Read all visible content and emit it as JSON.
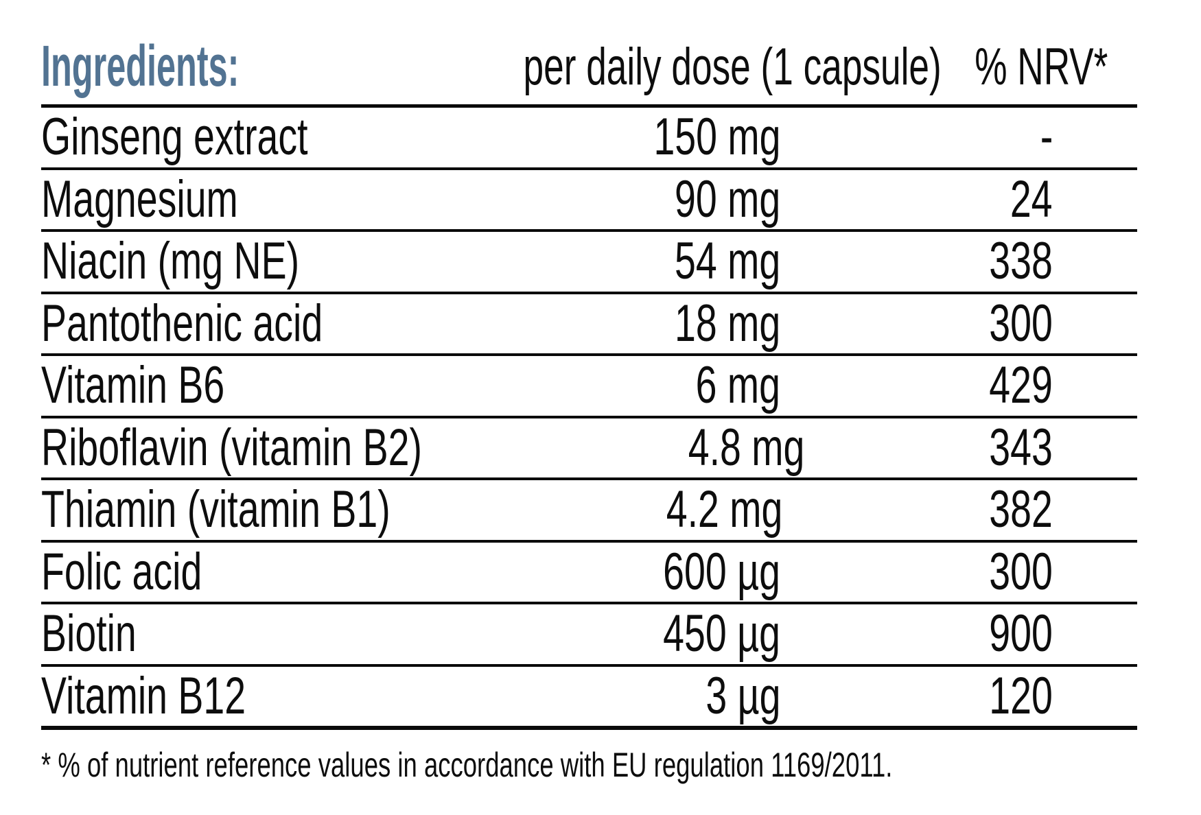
{
  "table": {
    "header": {
      "ingredients": "Ingredients:",
      "dose": "per daily dose (1 capsule)",
      "nrv": "% NRV*"
    },
    "rows": [
      {
        "name": "Ginseng extract",
        "dose": "150 mg",
        "nrv": "-"
      },
      {
        "name": "Magnesium",
        "dose": "90 mg",
        "nrv": "24"
      },
      {
        "name": "Niacin (mg NE)",
        "dose": "54 mg",
        "nrv": "338"
      },
      {
        "name": "Pantothenic acid",
        "dose": "18 mg",
        "nrv": "300"
      },
      {
        "name": "Vitamin B6",
        "dose": "6 mg",
        "nrv": "429"
      },
      {
        "name": "Riboflavin (vitamin B2)",
        "dose": "4.8 mg",
        "nrv": "343"
      },
      {
        "name": "Thiamin (vitamin B1)",
        "dose": "4.2 mg",
        "nrv": "382"
      },
      {
        "name": "Folic acid",
        "dose": "600 µg",
        "nrv": "300"
      },
      {
        "name": "Biotin",
        "dose": "450 µg",
        "nrv": "900"
      },
      {
        "name": "Vitamin B12",
        "dose": "3 µg",
        "nrv": "120"
      }
    ],
    "footnote": "* % of nutrient reference values in accordance with EU regulation 1169/2011."
  },
  "colors": {
    "heading": "#527392",
    "text": "#0d0d0d",
    "line": "#0a0a0a",
    "background": "#ffffff"
  }
}
